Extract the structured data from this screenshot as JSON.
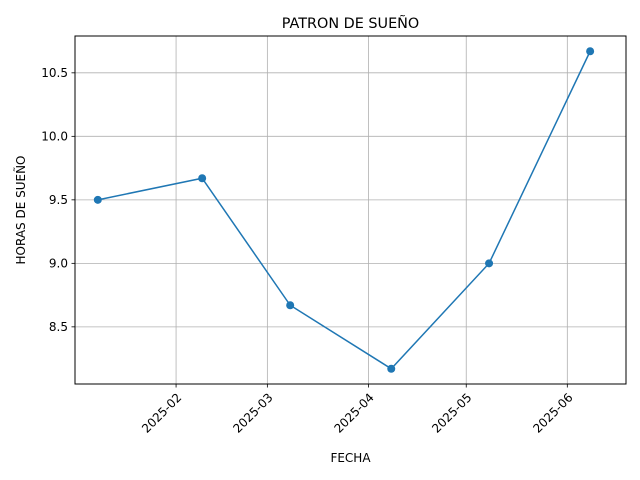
{
  "chart_data": {
    "type": "line",
    "title": "PATRON DE SUEÑO",
    "xlabel": "FECHA",
    "ylabel": "HORAS DE SUEÑO",
    "x": [
      "2025-01-08",
      "2025-02-09",
      "2025-03-08",
      "2025-04-08",
      "2025-05-08",
      "2025-06-08"
    ],
    "series": [
      {
        "values": [
          9.5,
          9.67,
          8.67,
          8.17,
          9.0,
          10.67
        ]
      }
    ],
    "xticks": [
      "2025-02",
      "2025-03",
      "2025-04",
      "2025-05",
      "2025-06"
    ],
    "yticks": [
      "8.5",
      "9.0",
      "9.5",
      "10.0",
      "10.5"
    ],
    "xlim": [
      "2025-01-01",
      "2025-06-19"
    ],
    "ylim": [
      8.05,
      10.79
    ],
    "grid": true,
    "colors": {
      "line": "#1f77b4",
      "grid": "#b0b0b0",
      "axis": "#000000"
    }
  }
}
